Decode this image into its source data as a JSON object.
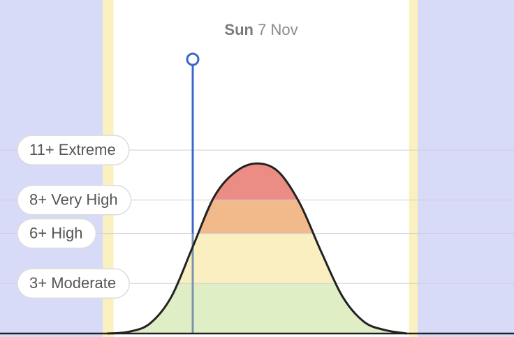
{
  "chart_data": {
    "type": "uv-curve",
    "date_label": {
      "weekday": "Sun",
      "date": "7 Nov"
    },
    "x": [
      5,
      6,
      7,
      8,
      9,
      10,
      11,
      12,
      13,
      14,
      15,
      16,
      17,
      18,
      19
    ],
    "values": [
      0,
      0.1,
      0.6,
      2.2,
      5.2,
      8.2,
      9.7,
      10.2,
      9.7,
      7.8,
      4.9,
      2.2,
      0.7,
      0.2,
      0
    ],
    "xlim": [
      0,
      24
    ],
    "ylim": [
      0,
      20
    ],
    "twilight": [
      4.8,
      19.5
    ],
    "daylight": [
      5.3,
      19.1
    ],
    "selected_hour": 9,
    "base_color": "#dfeec4",
    "levels": [
      {
        "value": 3,
        "label": "3+ Moderate",
        "color": "#faefc0"
      },
      {
        "value": 6,
        "label": "6+ High",
        "color": "#f2b98a"
      },
      {
        "value": 8,
        "label": "8+ Very High",
        "color": "#ec8d85"
      },
      {
        "value": 11,
        "label": "11+ Extreme",
        "color": "#ec8d85"
      }
    ]
  }
}
